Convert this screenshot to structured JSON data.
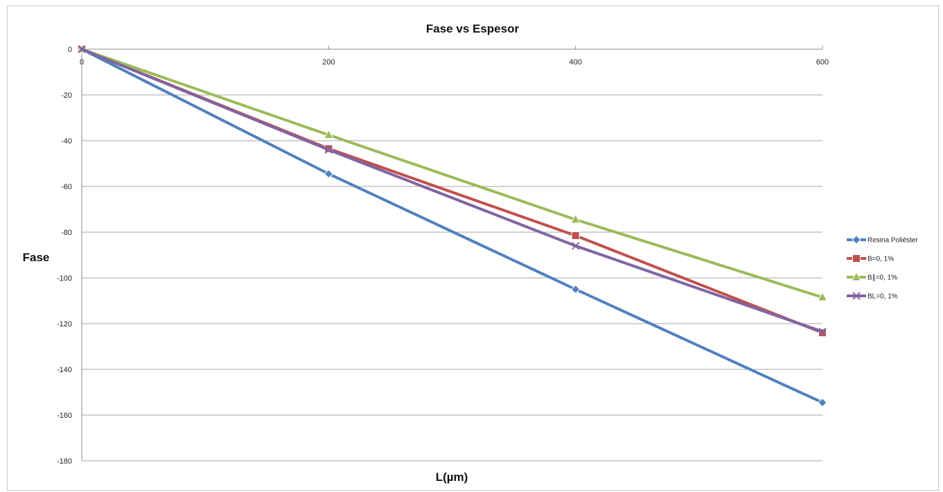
{
  "chart_data": {
    "type": "line",
    "title": "Fase vs Espesor",
    "xlabel": "L(µm)",
    "ylabel": "Fase",
    "x": [
      0,
      200,
      400,
      600
    ],
    "x_ticks": [
      "0",
      "200",
      "400",
      "600"
    ],
    "y_ticks": [
      "0",
      "-20",
      "-40",
      "-60",
      "-80",
      "-100",
      "-120",
      "-140",
      "-160",
      "-180"
    ],
    "xlim": [
      0,
      600
    ],
    "ylim": [
      -180,
      0
    ],
    "grid": "horizontal",
    "legend_position": "right",
    "series": [
      {
        "name": "Resina Poliéster",
        "values": [
          0,
          -54.5,
          -105,
          -154.5
        ],
        "color": "#4f81bd",
        "marker": "diamond"
      },
      {
        "name": "B=0, 1%",
        "values": [
          0,
          -43.5,
          -81.5,
          -124
        ],
        "color": "#c0504d",
        "marker": "square"
      },
      {
        "name": "B∥=0, 1%",
        "values": [
          0,
          -37.5,
          -74.5,
          -108.5
        ],
        "color": "#9bbb59",
        "marker": "triangle"
      },
      {
        "name": "BL=0, 1%",
        "values": [
          0,
          -44,
          -86,
          -123.5
        ],
        "color": "#8064a2",
        "marker": "cross"
      }
    ]
  }
}
